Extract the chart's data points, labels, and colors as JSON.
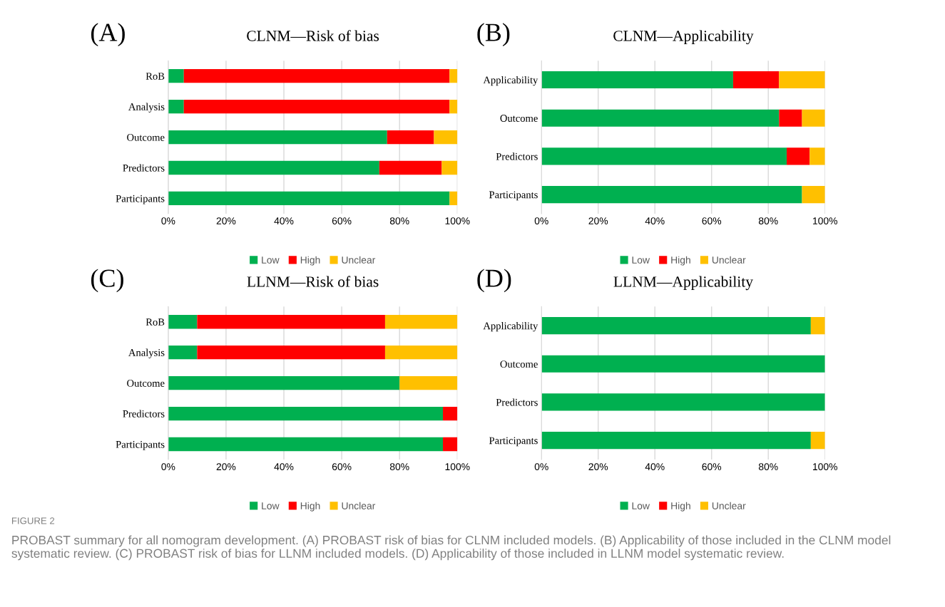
{
  "chart_data": [
    {
      "type": "bar",
      "orientation": "horizontal",
      "stacked": true,
      "title": "CLNM—Risk of bias",
      "annotations": [
        "(A)"
      ],
      "categories": [
        "RoB",
        "Analysis",
        "Outcome",
        "Predictors",
        "Participants"
      ],
      "series": [
        {
          "name": "Low",
          "color": "#00b050",
          "values": [
            5.4,
            5.4,
            75.7,
            73.0,
            97.3
          ]
        },
        {
          "name": "High",
          "color": "#ff0000",
          "values": [
            91.9,
            91.9,
            16.2,
            21.6,
            0
          ]
        },
        {
          "name": "Unclear",
          "color": "#ffc000",
          "values": [
            2.7,
            2.7,
            8.1,
            5.4,
            2.7
          ]
        }
      ],
      "xlim": [
        0,
        100
      ],
      "xticks": [
        {
          "value": 0,
          "label": "0%"
        },
        {
          "value": 20,
          "label": "20%"
        },
        {
          "value": 40,
          "label": "40%"
        },
        {
          "value": 60,
          "label": "60%"
        },
        {
          "value": 80,
          "label": "80%"
        },
        {
          "value": 100,
          "label": "100%"
        }
      ],
      "grid": "x",
      "legend": "bottom"
    },
    {
      "type": "bar",
      "orientation": "horizontal",
      "stacked": true,
      "title": "CLNM—Applicability",
      "annotations": [
        "(B)"
      ],
      "categories": [
        "Applicability",
        "Outcome",
        "Predictors",
        "Participants"
      ],
      "series": [
        {
          "name": "Low",
          "color": "#00b050",
          "values": [
            67.6,
            83.8,
            86.5,
            91.9
          ]
        },
        {
          "name": "High",
          "color": "#ff0000",
          "values": [
            16.2,
            8.1,
            8.1,
            0
          ]
        },
        {
          "name": "Unclear",
          "color": "#ffc000",
          "values": [
            16.2,
            8.1,
            5.4,
            8.1
          ]
        }
      ],
      "xlim": [
        0,
        100
      ],
      "xticks": [
        {
          "value": 0,
          "label": "0%"
        },
        {
          "value": 20,
          "label": "20%"
        },
        {
          "value": 40,
          "label": "40%"
        },
        {
          "value": 60,
          "label": "60%"
        },
        {
          "value": 80,
          "label": "80%"
        },
        {
          "value": 100,
          "label": "100%"
        }
      ],
      "grid": "x",
      "legend": "bottom"
    },
    {
      "type": "bar",
      "orientation": "horizontal",
      "stacked": true,
      "title": "LLNM—Risk of bias",
      "annotations": [
        "(C)"
      ],
      "categories": [
        "RoB",
        "Analysis",
        "Outcome",
        "Predictors",
        "Participants"
      ],
      "series": [
        {
          "name": "Low",
          "color": "#00b050",
          "values": [
            10,
            10,
            80,
            95,
            95
          ]
        },
        {
          "name": "High",
          "color": "#ff0000",
          "values": [
            65,
            65,
            0,
            5,
            5
          ]
        },
        {
          "name": "Unclear",
          "color": "#ffc000",
          "values": [
            25,
            25,
            20,
            0,
            0
          ]
        }
      ],
      "xlim": [
        0,
        100
      ],
      "xticks": [
        {
          "value": 0,
          "label": "0%"
        },
        {
          "value": 20,
          "label": "20%"
        },
        {
          "value": 40,
          "label": "40%"
        },
        {
          "value": 60,
          "label": "60%"
        },
        {
          "value": 80,
          "label": "80%"
        },
        {
          "value": 100,
          "label": "100%"
        }
      ],
      "grid": "x",
      "legend": "bottom"
    },
    {
      "type": "bar",
      "orientation": "horizontal",
      "stacked": true,
      "title": "LLNM—Applicability",
      "annotations": [
        "(D)",
        "FIGURE 2",
        "PROBAST summary for all nomogram development. (A) PROBAST risk of bias for CLNM included models. (B) Applicability of those included in the CLNM model systematic review. (C) PROBAST risk of bias for LLNM included models. (D) Applicability of those included in LLNM model systematic review."
      ],
      "categories": [
        "Applicability",
        "Outcome",
        "Predictors",
        "Participants"
      ],
      "series": [
        {
          "name": "Low",
          "color": "#00b050",
          "values": [
            95,
            100,
            100,
            95
          ]
        },
        {
          "name": "High",
          "color": "#ff0000",
          "values": [
            0,
            0,
            0,
            0
          ]
        },
        {
          "name": "Unclear",
          "color": "#ffc000",
          "values": [
            5,
            0,
            0,
            5
          ]
        }
      ],
      "xlim": [
        0,
        100
      ],
      "xticks": [
        {
          "value": 0,
          "label": "0%"
        },
        {
          "value": 20,
          "label": "20%"
        },
        {
          "value": 40,
          "label": "40%"
        },
        {
          "value": 60,
          "label": "60%"
        },
        {
          "value": 80,
          "label": "80%"
        },
        {
          "value": 100,
          "label": "100%"
        }
      ],
      "grid": "x",
      "legend": "bottom"
    }
  ]
}
